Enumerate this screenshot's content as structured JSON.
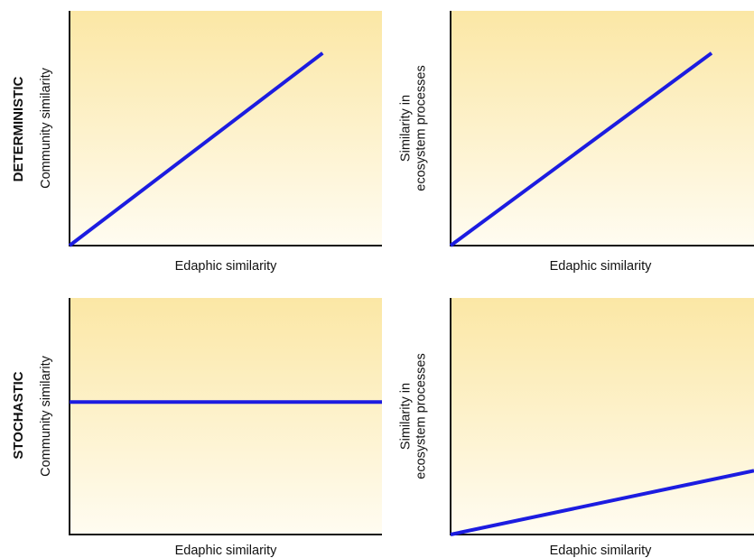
{
  "rows": [
    {
      "label": "DETERMINISTIC"
    },
    {
      "label": "STOCHASTIC"
    }
  ],
  "colors": {
    "series": "#1c1ce0",
    "bg_top": "#fbe7a5",
    "bg_bottom": "#fffcf1",
    "axis": "#111111"
  },
  "chart_data": [
    {
      "type": "line",
      "row": "DETERMINISTIC",
      "xlabel": "Edaphic similarity",
      "ylabel_lines": [
        "Community similarity"
      ],
      "xlim": [
        0,
        1
      ],
      "ylim": [
        0,
        1
      ],
      "ticks": false,
      "grid": false,
      "series": [
        {
          "x": [
            0,
            0.81
          ],
          "y": [
            0,
            0.82
          ]
        }
      ]
    },
    {
      "type": "line",
      "row": "DETERMINISTIC",
      "xlabel": "Edaphic similarity",
      "ylabel_lines": [
        "Similarity in",
        "ecosystem processes"
      ],
      "xlim": [
        0,
        1
      ],
      "ylim": [
        0,
        1
      ],
      "ticks": false,
      "grid": false,
      "series": [
        {
          "x": [
            0,
            0.86
          ],
          "y": [
            0,
            0.82
          ]
        }
      ]
    },
    {
      "type": "line",
      "row": "STOCHASTIC",
      "xlabel": "Edaphic similarity",
      "ylabel_lines": [
        "Community similarity"
      ],
      "xlim": [
        0,
        1
      ],
      "ylim": [
        0,
        1
      ],
      "ticks": false,
      "grid": false,
      "series": [
        {
          "x": [
            0,
            1
          ],
          "y": [
            0.56,
            0.56
          ]
        }
      ]
    },
    {
      "type": "line",
      "row": "STOCHASTIC",
      "xlabel": "Edaphic similarity",
      "ylabel_lines": [
        "Similarity in",
        "ecosystem processes"
      ],
      "xlim": [
        0,
        1
      ],
      "ylim": [
        0,
        1
      ],
      "ticks": false,
      "grid": false,
      "series": [
        {
          "x": [
            0,
            1
          ],
          "y": [
            0,
            0.27
          ]
        }
      ]
    }
  ]
}
